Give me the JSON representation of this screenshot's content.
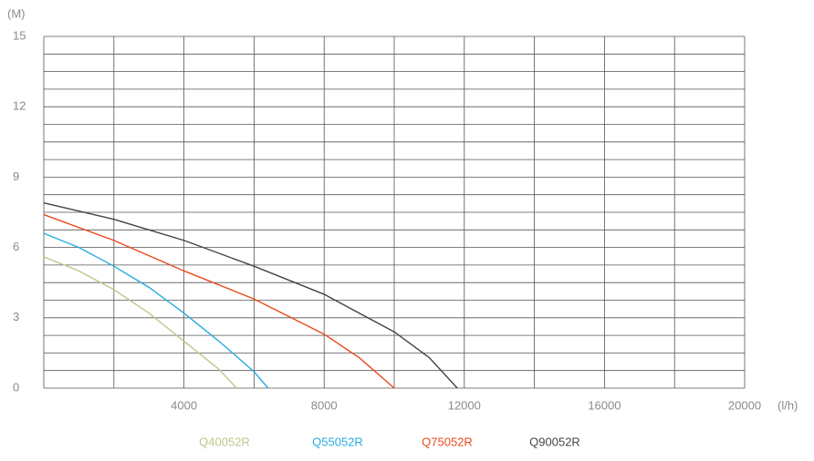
{
  "chart_data": {
    "type": "line",
    "y_label": "(M)",
    "x_label": "(l/h)",
    "xlim": [
      0,
      20000
    ],
    "ylim": [
      0,
      15
    ],
    "xticks": [
      4000,
      8000,
      12000,
      16000,
      20000
    ],
    "yticks": [
      0,
      3,
      6,
      9,
      12,
      15
    ],
    "xgrid": [
      0,
      2000,
      4000,
      6000,
      8000,
      10000,
      12000,
      14000,
      16000,
      18000,
      20000
    ],
    "ygrid": [
      0,
      0.75,
      1.5,
      2.25,
      3,
      3.75,
      4.5,
      5.25,
      6,
      6.75,
      7.5,
      8.25,
      9,
      9.75,
      10.5,
      11.25,
      12,
      12.75,
      13.5,
      14.25,
      15
    ],
    "series": [
      {
        "name": "Q40052R",
        "color": "#b8c98c",
        "x": [
          0,
          1000,
          2000,
          3000,
          4000,
          5000,
          5500
        ],
        "values": [
          5.6,
          5.0,
          4.2,
          3.2,
          2.0,
          0.8,
          0
        ]
      },
      {
        "name": "Q55052R",
        "color": "#29abe2",
        "x": [
          0,
          1000,
          2000,
          3000,
          4000,
          5000,
          6000,
          6400
        ],
        "values": [
          6.6,
          6.0,
          5.2,
          4.3,
          3.2,
          2.0,
          0.7,
          0
        ]
      },
      {
        "name": "Q75052R",
        "color": "#e8491d",
        "x": [
          0,
          2000,
          4000,
          6000,
          8000,
          9000,
          10000
        ],
        "values": [
          7.4,
          6.3,
          5.0,
          3.8,
          2.3,
          1.3,
          0
        ]
      },
      {
        "name": "Q90052R",
        "color": "#444444",
        "x": [
          0,
          2000,
          4000,
          6000,
          8000,
          10000,
          11000,
          11800
        ],
        "values": [
          7.9,
          7.2,
          6.3,
          5.2,
          4.0,
          2.4,
          1.3,
          0
        ]
      }
    ]
  }
}
